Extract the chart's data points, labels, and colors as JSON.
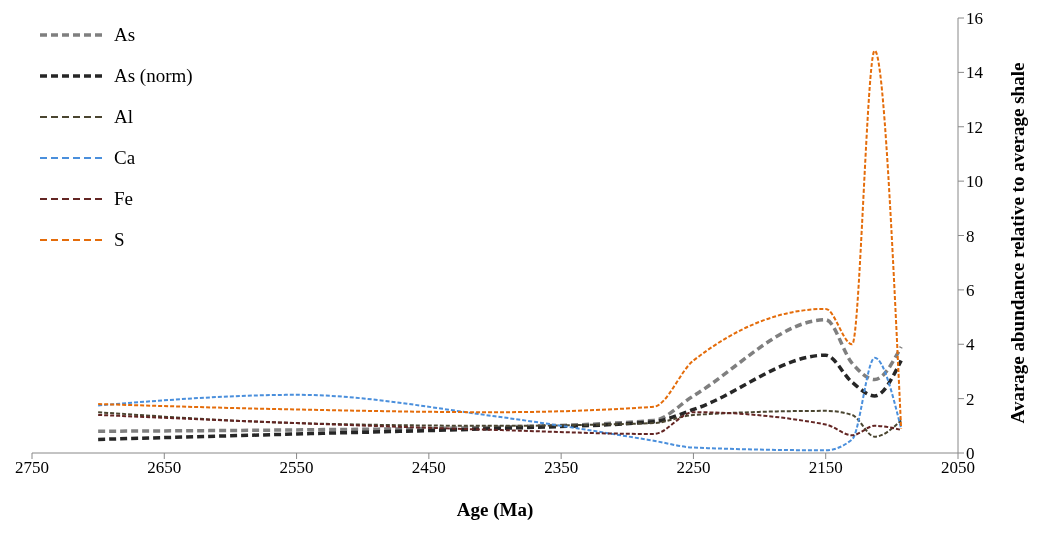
{
  "chart_data": {
    "type": "line",
    "xlabel": "Age (Ma)",
    "ylabel": "Avarage abundance relative to average shale",
    "x": [
      2700,
      2550,
      2400,
      2280,
      2250,
      2150,
      2130,
      2113,
      2093
    ],
    "series": [
      {
        "name": "As",
        "color": "#7f7f7f",
        "values": [
          0.8,
          0.85,
          0.95,
          1.2,
          2.1,
          4.9,
          3.3,
          2.7,
          3.9
        ]
      },
      {
        "name": "As (norm)",
        "color": "#262626",
        "values": [
          0.5,
          0.7,
          0.9,
          1.15,
          1.6,
          3.6,
          2.6,
          2.1,
          3.4
        ]
      },
      {
        "name": "Al",
        "color": "#4a4530",
        "values": [
          1.5,
          1.1,
          1.0,
          1.1,
          1.4,
          1.55,
          1.4,
          0.6,
          1.2
        ]
      },
      {
        "name": "Ca",
        "color": "#4a8fdc",
        "values": [
          1.75,
          2.14,
          1.35,
          0.45,
          0.2,
          0.1,
          0.5,
          3.5,
          0.9
        ]
      },
      {
        "name": "Fe",
        "color": "#632523",
        "values": [
          1.4,
          1.1,
          0.85,
          0.7,
          1.5,
          1.05,
          0.65,
          1.0,
          0.85
        ]
      },
      {
        "name": "S",
        "color": "#e46c0a",
        "values": [
          1.8,
          1.6,
          1.5,
          1.7,
          3.4,
          5.3,
          4.0,
          14.8,
          0.9
        ]
      }
    ],
    "xlim": [
      2750,
      2050
    ],
    "xticks": [
      2750,
      2650,
      2550,
      2450,
      2350,
      2250,
      2150,
      2050
    ],
    "ylim": [
      0,
      16
    ],
    "yticks": [
      0,
      2,
      4,
      6,
      8,
      10,
      12,
      14,
      16
    ],
    "grid": false,
    "legend": "top left",
    "marker": "none",
    "line_style": "dashed"
  }
}
